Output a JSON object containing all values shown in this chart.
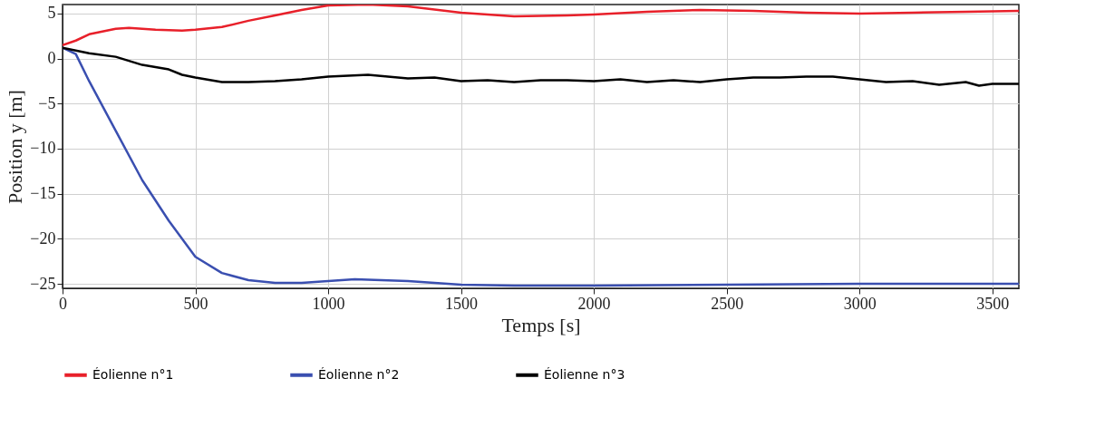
{
  "chart_data": {
    "type": "line",
    "xlabel": "Temps [s]",
    "ylabel": "Position y [m]",
    "xlim": [
      0,
      3600
    ],
    "xticks": [
      0,
      500,
      1000,
      1500,
      2000,
      2500,
      3000,
      3500
    ],
    "ylim": [
      -25.5,
      6
    ],
    "yticks": [
      5,
      0,
      -5,
      -10,
      -15,
      -20,
      -25
    ],
    "grid": true,
    "legend": "bottom",
    "line_style": "solid",
    "marker": "none",
    "series": [
      {
        "name": "Éolienne n°1",
        "color": "#e8202a",
        "x": [
          0,
          50,
          100,
          200,
          250,
          350,
          450,
          500,
          600,
          700,
          800,
          900,
          1000,
          1150,
          1300,
          1500,
          1700,
          1900,
          2000,
          2200,
          2400,
          2600,
          2800,
          3000,
          3200,
          3400,
          3600
        ],
        "values": [
          1.5,
          2,
          2.7,
          3.3,
          3.4,
          3.2,
          3.1,
          3.2,
          3.5,
          4.2,
          4.8,
          5.4,
          5.9,
          6.0,
          5.8,
          5.1,
          4.7,
          4.8,
          4.9,
          5.2,
          5.4,
          5.3,
          5.1,
          5.0,
          5.1,
          5.2,
          5.3
        ]
      },
      {
        "name": "Éolienne n°2",
        "color": "#3a4fb0",
        "x": [
          0,
          50,
          100,
          200,
          300,
          400,
          500,
          600,
          700,
          800,
          900,
          1000,
          1100,
          1300,
          1500,
          1700,
          2000,
          2500,
          3000,
          3600
        ],
        "values": [
          1.2,
          0.5,
          -2.5,
          -8,
          -13.5,
          -18,
          -22,
          -23.8,
          -24.6,
          -24.9,
          -24.9,
          -24.7,
          -24.5,
          -24.7,
          -25.1,
          -25.2,
          -25.2,
          -25.1,
          -25.0,
          -25.0
        ]
      },
      {
        "name": "Éolienne n°3",
        "color": "#000000",
        "x": [
          0,
          100,
          200,
          300,
          400,
          450,
          500,
          600,
          700,
          800,
          900,
          1000,
          1150,
          1300,
          1400,
          1500,
          1600,
          1700,
          1800,
          1900,
          2000,
          2100,
          2200,
          2300,
          2400,
          2500,
          2600,
          2700,
          2800,
          2900,
          3000,
          3100,
          3200,
          3300,
          3400,
          3450,
          3500,
          3600
        ],
        "values": [
          1.2,
          0.6,
          0.2,
          -0.7,
          -1.2,
          -1.8,
          -2.1,
          -2.6,
          -2.6,
          -2.5,
          -2.3,
          -2.0,
          -1.8,
          -2.2,
          -2.1,
          -2.5,
          -2.4,
          -2.6,
          -2.4,
          -2.4,
          -2.5,
          -2.3,
          -2.6,
          -2.4,
          -2.6,
          -2.3,
          -2.1,
          -2.1,
          -2.0,
          -2.0,
          -2.3,
          -2.6,
          -2.5,
          -2.9,
          -2.6,
          -3.0,
          -2.8,
          -2.8
        ]
      }
    ]
  }
}
